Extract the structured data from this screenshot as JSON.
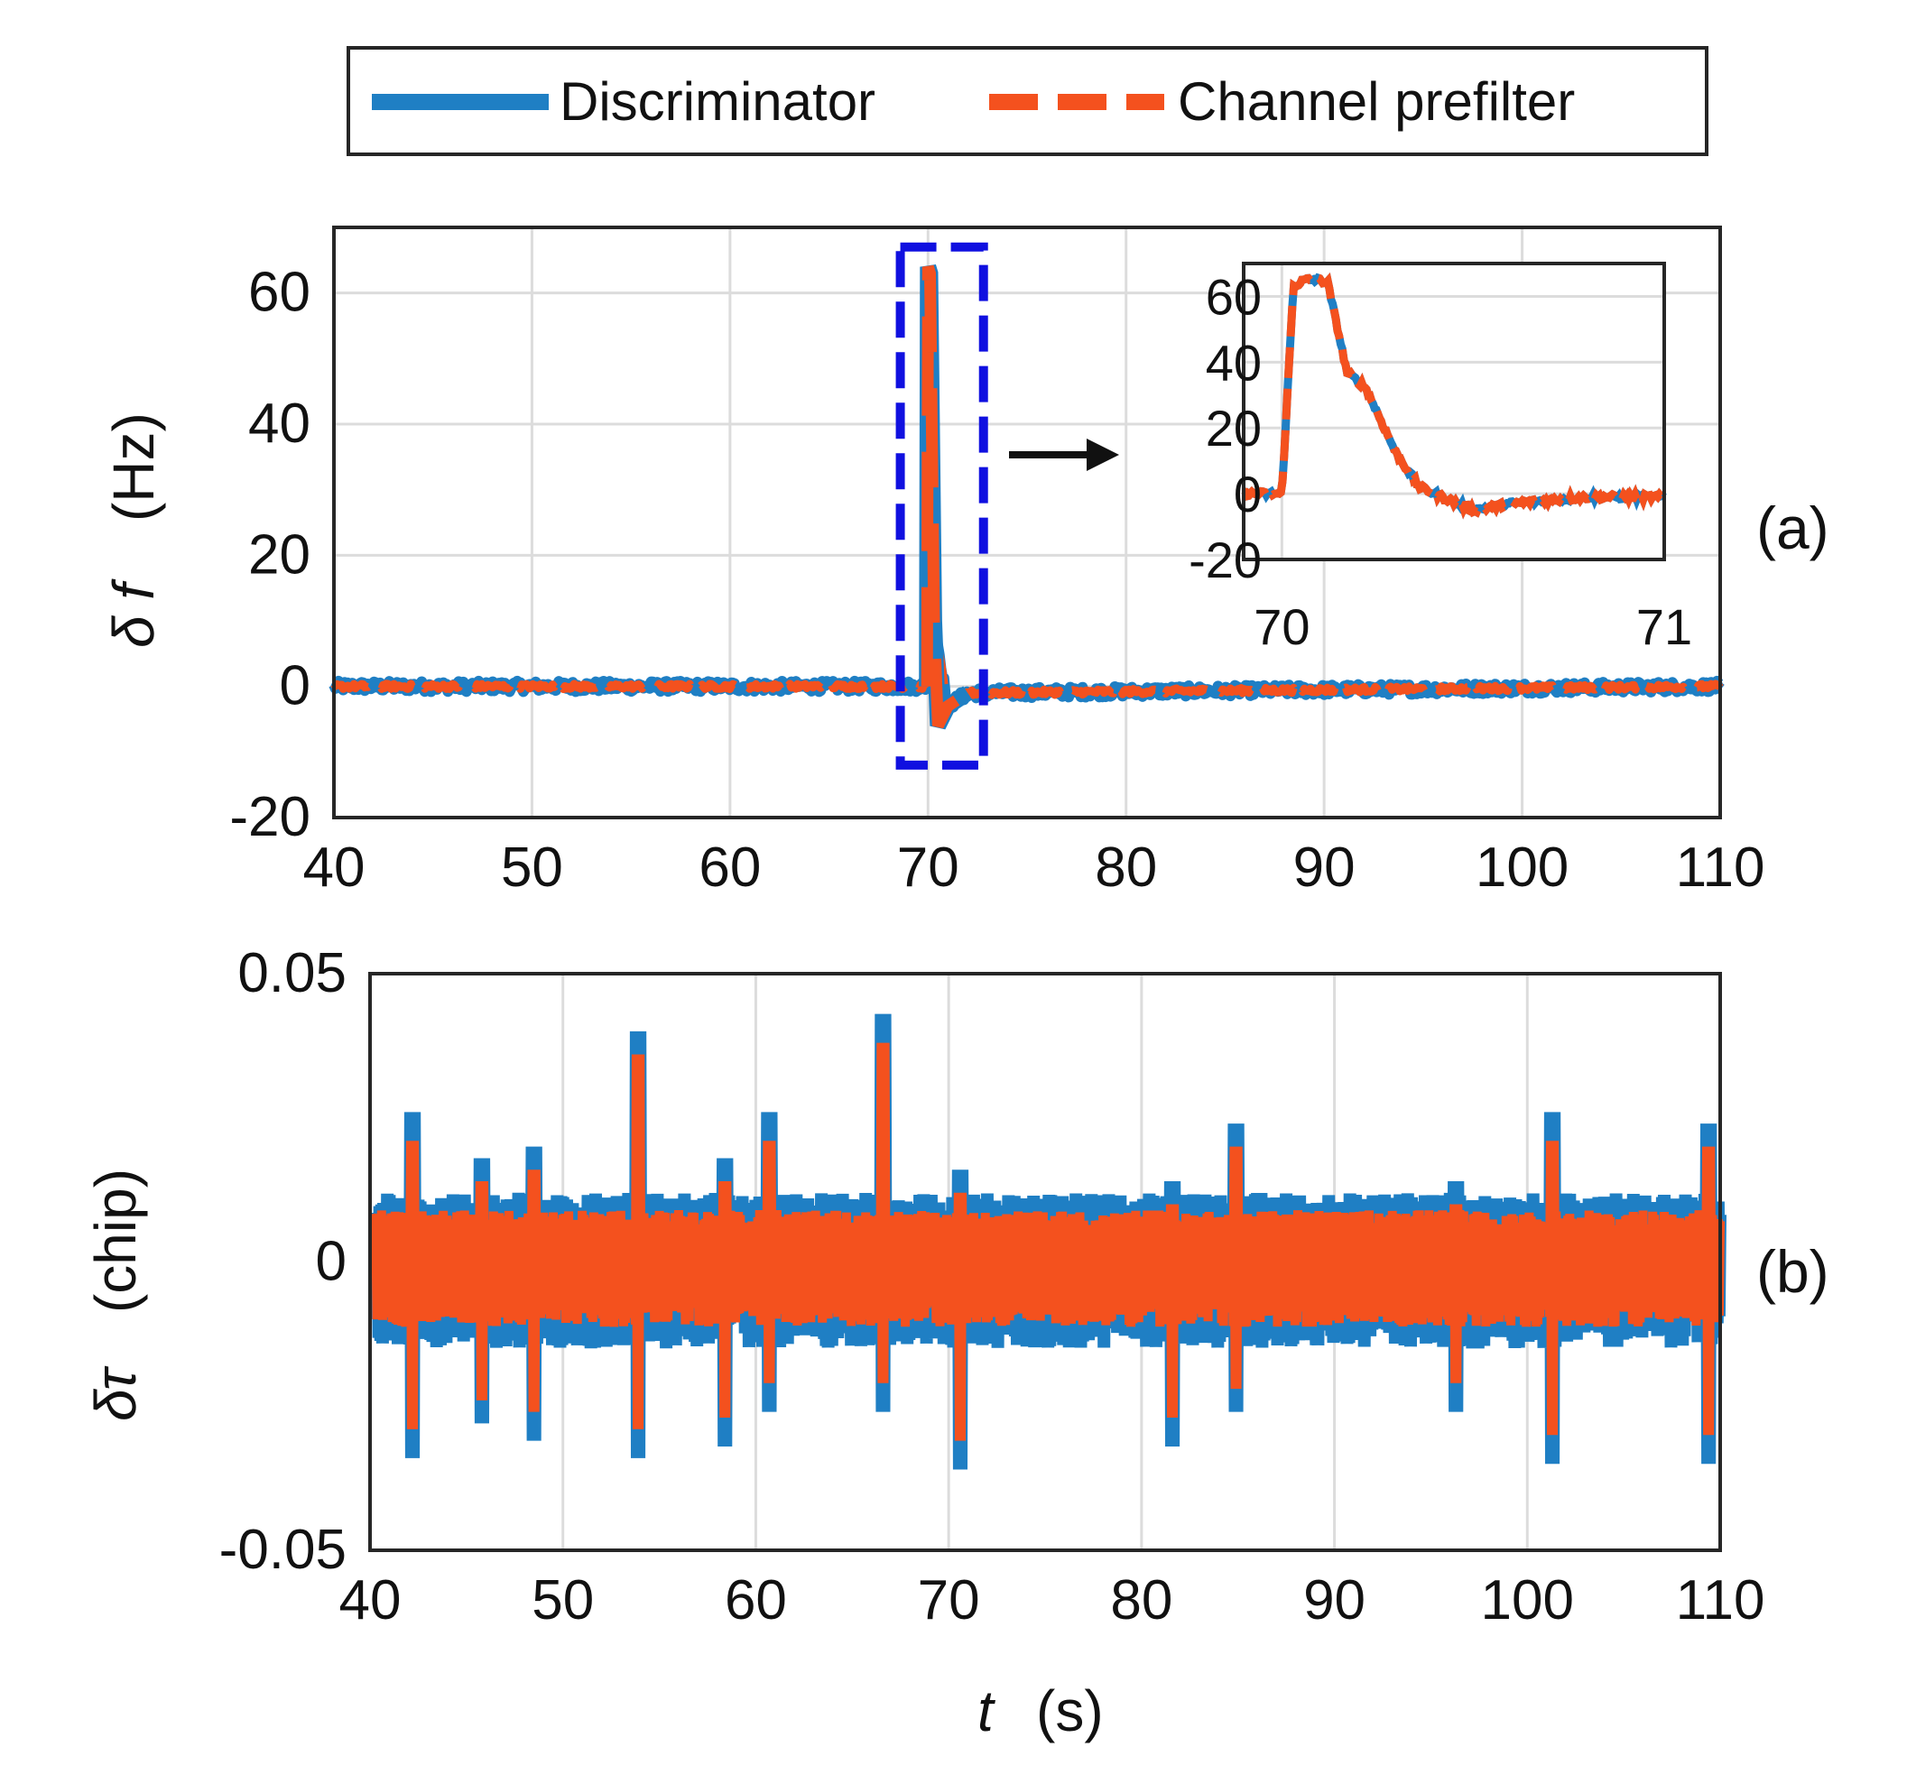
{
  "legend": {
    "items": [
      {
        "label": "Discriminator",
        "color": "#1f7fc4",
        "style": "solid"
      },
      {
        "label": "Channel prefilter",
        "color": "#f4511e",
        "style": "dashed"
      }
    ]
  },
  "panel_labels": [
    "(a)",
    "(b)"
  ],
  "axis_titles": {
    "a_ylabel_symbol": "δ f",
    "a_ylabel_unit": "(Hz)",
    "b_ylabel_symbol": "δτ",
    "b_ylabel_unit": "(chip)",
    "xlabel_symbol": "t",
    "xlabel_unit": "(s)"
  },
  "chart_data": [
    {
      "id": "a",
      "type": "line",
      "xlabel": "t (s)",
      "ylabel": "δ f (Hz)",
      "xlim": [
        40,
        110
      ],
      "ylim": [
        -20,
        70
      ],
      "xticks": [
        "40",
        "50",
        "60",
        "70",
        "80",
        "90",
        "100",
        "110"
      ],
      "yticks": [
        "-20",
        "0",
        "20",
        "40",
        "60"
      ],
      "grid": true,
      "highlight_box": {
        "x": [
          68.6,
          72.8
        ],
        "y": [
          -12,
          67
        ],
        "color": "#1010e0",
        "style": "dashed"
      },
      "series": [
        {
          "name": "Discriminator",
          "x": [
            40,
            69.9,
            70.0,
            70.05,
            70.2,
            70.4,
            71,
            72,
            110
          ],
          "y": [
            0,
            0,
            64,
            63,
            35,
            8,
            -3,
            -1,
            0
          ],
          "noise": 0.8
        },
        {
          "name": "Channel prefilter",
          "x": [
            40,
            69.9,
            70.0,
            70.05,
            70.2,
            70.4,
            71,
            72,
            110
          ],
          "y": [
            0,
            0,
            64,
            63,
            35,
            8,
            -3,
            -1,
            0
          ],
          "noise": 0.4
        }
      ],
      "inset": {
        "xlim": [
          69.9,
          71
        ],
        "ylim": [
          -20,
          70
        ],
        "xticks": [
          "70",
          "71"
        ],
        "yticks": [
          "-20",
          "0",
          "20",
          "40",
          "60"
        ],
        "grid": true,
        "series": [
          {
            "name": "Channel prefilter",
            "x": [
              69.9,
              70.0,
              70.03,
              70.06,
              70.1,
              70.12,
              70.17,
              70.22,
              70.3,
              70.36,
              70.42,
              70.5,
              70.6,
              70.8,
              71.0
            ],
            "y": [
              0,
              0,
              63,
              65,
              65,
              64,
              37,
              32,
              12,
              2,
              -1,
              -5,
              -3,
              -1,
              -1
            ]
          }
        ]
      }
    },
    {
      "id": "b",
      "type": "line",
      "xlabel": "t (s)",
      "ylabel": "δτ (chip)",
      "xlim": [
        40,
        110
      ],
      "ylim": [
        -0.05,
        0.05
      ],
      "xticks": [
        "40",
        "50",
        "60",
        "70",
        "80",
        "90",
        "100",
        "110"
      ],
      "yticks": [
        "-0.05",
        "0",
        "0.05"
      ],
      "grid": true,
      "envelope_note": "noise band around zero",
      "series": [
        {
          "name": "Discriminator",
          "band": 0.012,
          "spikes": [
            [
              42.2,
              0.026,
              -0.034
            ],
            [
              45.8,
              0.018,
              -0.028
            ],
            [
              48.5,
              0.02,
              -0.031
            ],
            [
              53.9,
              0.04,
              -0.034
            ],
            [
              58.4,
              0.018,
              -0.032
            ],
            [
              60.7,
              0.026,
              -0.026
            ],
            [
              66.6,
              0.043,
              -0.026
            ],
            [
              70.6,
              0.016,
              -0.036
            ],
            [
              81.6,
              0.014,
              -0.032
            ],
            [
              84.9,
              0.024,
              -0.026
            ],
            [
              96.3,
              0.014,
              -0.026
            ],
            [
              101.3,
              0.026,
              -0.035
            ],
            [
              109.4,
              0.024,
              -0.035
            ]
          ]
        },
        {
          "name": "Channel prefilter",
          "band": 0.009,
          "spikes": [
            [
              42.2,
              0.021,
              -0.029
            ],
            [
              45.8,
              0.014,
              -0.024
            ],
            [
              48.5,
              0.016,
              -0.026
            ],
            [
              53.9,
              0.036,
              -0.029
            ],
            [
              58.4,
              0.014,
              -0.027
            ],
            [
              60.7,
              0.021,
              -0.021
            ],
            [
              66.6,
              0.038,
              -0.021
            ],
            [
              70.6,
              0.012,
              -0.031
            ],
            [
              81.6,
              0.01,
              -0.027
            ],
            [
              84.9,
              0.02,
              -0.022
            ],
            [
              96.3,
              0.01,
              -0.021
            ],
            [
              101.3,
              0.021,
              -0.03
            ],
            [
              109.4,
              0.02,
              -0.03
            ]
          ]
        }
      ]
    }
  ]
}
